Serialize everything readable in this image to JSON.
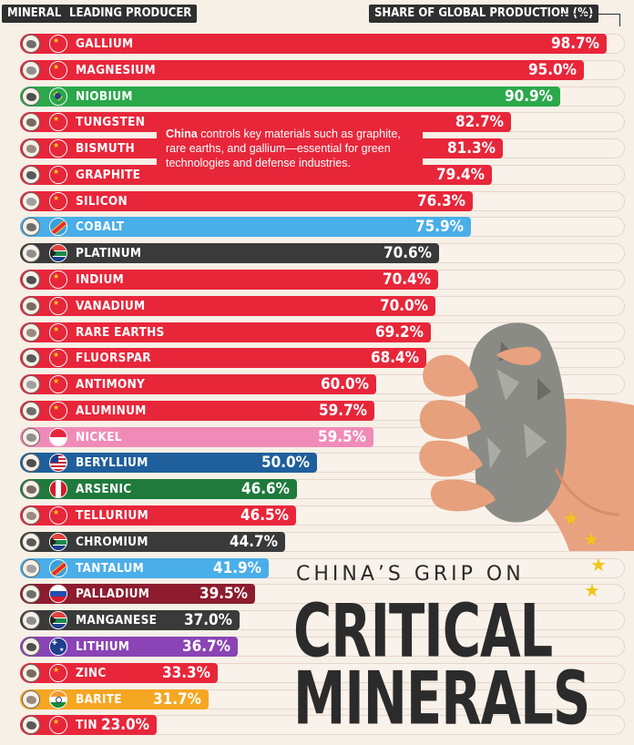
{
  "headers": {
    "mineral": "MINERAL",
    "producer": "LEADING PRODUCER",
    "share": "SHARE OF GLOBAL PRODUCTION (%)"
  },
  "note": {
    "bold": "China",
    "text": " controls key materials such as graphite, rare earths, and gallium—essential for green technologies and defense industries."
  },
  "title": {
    "line1": "CHINA’S GRIP ON",
    "line2": "CRITICAL",
    "line3": "MINERALS"
  },
  "colors": {
    "china": "#e8263a",
    "brazil": "#2aa84a",
    "drc": "#4aaee8",
    "south_africa": "#3a3a3a",
    "indonesia": "#f08bb8",
    "usa": "#1f5f9c",
    "peru": "#1f7a3c",
    "russia": "#8c1c2e",
    "gabon": "#3a3a3a",
    "australia": "#8a44b5",
    "india": "#f5a623"
  },
  "chart_data": {
    "type": "bar",
    "orientation": "horizontal",
    "xlabel": "SHARE OF GLOBAL PRODUCTION (%)",
    "xlim": [
      0,
      100
    ],
    "rows": [
      {
        "mineral": "GALLIUM",
        "producer": "China",
        "value": 98.7,
        "label": "98.7%"
      },
      {
        "mineral": "MAGNESIUM",
        "producer": "China",
        "value": 95.0,
        "label": "95.0%"
      },
      {
        "mineral": "NIOBIUM",
        "producer": "Brazil",
        "value": 90.9,
        "label": "90.9%"
      },
      {
        "mineral": "TUNGSTEN",
        "producer": "China",
        "value": 82.7,
        "label": "82.7%"
      },
      {
        "mineral": "BISMUTH",
        "producer": "China",
        "value": 81.3,
        "label": "81.3%"
      },
      {
        "mineral": "GRAPHITE",
        "producer": "China",
        "value": 79.4,
        "label": "79.4%"
      },
      {
        "mineral": "SILICON",
        "producer": "China",
        "value": 76.3,
        "label": "76.3%"
      },
      {
        "mineral": "COBALT",
        "producer": "DR Congo",
        "value": 75.9,
        "label": "75.9%"
      },
      {
        "mineral": "PLATINUM",
        "producer": "South Africa",
        "value": 70.6,
        "label": "70.6%"
      },
      {
        "mineral": "INDIUM",
        "producer": "China",
        "value": 70.4,
        "label": "70.4%"
      },
      {
        "mineral": "VANADIUM",
        "producer": "China",
        "value": 70.0,
        "label": "70.0%"
      },
      {
        "mineral": "RARE EARTHS",
        "producer": "China",
        "value": 69.2,
        "label": "69.2%"
      },
      {
        "mineral": "FLUORSPAR",
        "producer": "China",
        "value": 68.4,
        "label": "68.4%"
      },
      {
        "mineral": "ANTIMONY",
        "producer": "China",
        "value": 60.0,
        "label": "60.0%"
      },
      {
        "mineral": "ALUMINUM",
        "producer": "China",
        "value": 59.7,
        "label": "59.7%"
      },
      {
        "mineral": "NICKEL",
        "producer": "Indonesia",
        "value": 59.5,
        "label": "59.5%"
      },
      {
        "mineral": "BERYLLIUM",
        "producer": "USA",
        "value": 50.0,
        "label": "50.0%"
      },
      {
        "mineral": "ARSENIC",
        "producer": "Peru",
        "value": 46.6,
        "label": "46.6%"
      },
      {
        "mineral": "TELLURIUM",
        "producer": "China",
        "value": 46.5,
        "label": "46.5%"
      },
      {
        "mineral": "CHROMIUM",
        "producer": "South Africa",
        "value": 44.7,
        "label": "44.7%"
      },
      {
        "mineral": "TANTALUM",
        "producer": "DR Congo",
        "value": 41.9,
        "label": "41.9%"
      },
      {
        "mineral": "PALLADIUM",
        "producer": "Russia",
        "value": 39.5,
        "label": "39.5%"
      },
      {
        "mineral": "MANGANESE",
        "producer": "South Africa",
        "value": 37.0,
        "label": "37.0%"
      },
      {
        "mineral": "LITHIUM",
        "producer": "Australia",
        "value": 36.7,
        "label": "36.7%"
      },
      {
        "mineral": "ZINC",
        "producer": "China",
        "value": 33.3,
        "label": "33.3%"
      },
      {
        "mineral": "BARITE",
        "producer": "India",
        "value": 31.7,
        "label": "31.7%"
      },
      {
        "mineral": "TIN",
        "producer": "China",
        "value": 23.0,
        "label": "23.0%"
      }
    ]
  }
}
